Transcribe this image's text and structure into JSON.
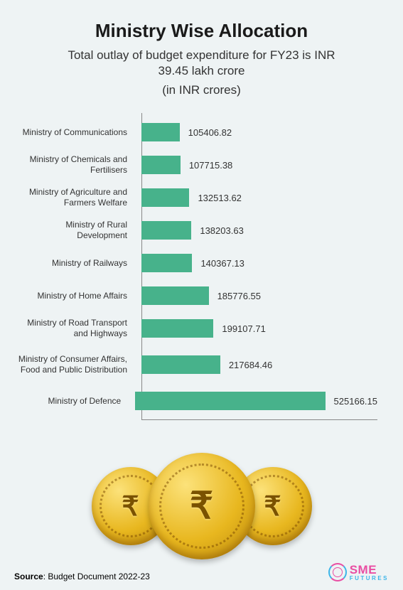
{
  "title": "Ministry Wise Allocation",
  "title_fontsize": 26,
  "subtitle": "Total outlay of budget expenditure for FY23 is INR 39.45 lakh crore",
  "subtitle_fontsize": 17,
  "unit_label": "(in INR crores)",
  "unit_fontsize": 17,
  "chart": {
    "type": "bar-horizontal",
    "bar_color": "#47b28b",
    "background_color": "#eef3f4",
    "axis_color": "#888888",
    "label_fontsize": 12,
    "value_fontsize": 13,
    "xlim_max": 550000,
    "bars": [
      {
        "label": "Ministry of Communications",
        "value": 105406.82,
        "display": "105406.82"
      },
      {
        "label": "Ministry of Chemicals and Fertilisers",
        "value": 107715.38,
        "display": "107715.38"
      },
      {
        "label": "Ministry of Agriculture and Farmers Welfare",
        "value": 132513.62,
        "display": "132513.62"
      },
      {
        "label": "Ministry of Rural Development",
        "value": 138203.63,
        "display": "138203.63"
      },
      {
        "label": "Ministry of Railways",
        "value": 140367.13,
        "display": "140367.13"
      },
      {
        "label": "Ministry of Home Affairs",
        "value": 185776.55,
        "display": "185776.55"
      },
      {
        "label": "Ministry of Road Transport and Highways",
        "value": 199107.71,
        "display": "199107.71"
      },
      {
        "label": "Ministry of Consumer Affairs, Food and Public Distribution",
        "value": 217684.46,
        "display": "217684.46"
      },
      {
        "label": "Ministry of Defence",
        "value": 525166.15,
        "display": "525166.15"
      }
    ]
  },
  "decoration": {
    "type": "rupee-coins",
    "rupee_symbol": "₹",
    "coin_gradient_inner": "#fce27a",
    "coin_gradient_mid": "#e8b71f",
    "coin_gradient_outer": "#b8860b"
  },
  "footer": {
    "source_prefix": "Source",
    "source_text": ": Budget Document 2022-23",
    "logo_top": "SME",
    "logo_bottom": "FUTURES",
    "logo_pink": "#e94ea3",
    "logo_blue": "#3cb5e8"
  }
}
